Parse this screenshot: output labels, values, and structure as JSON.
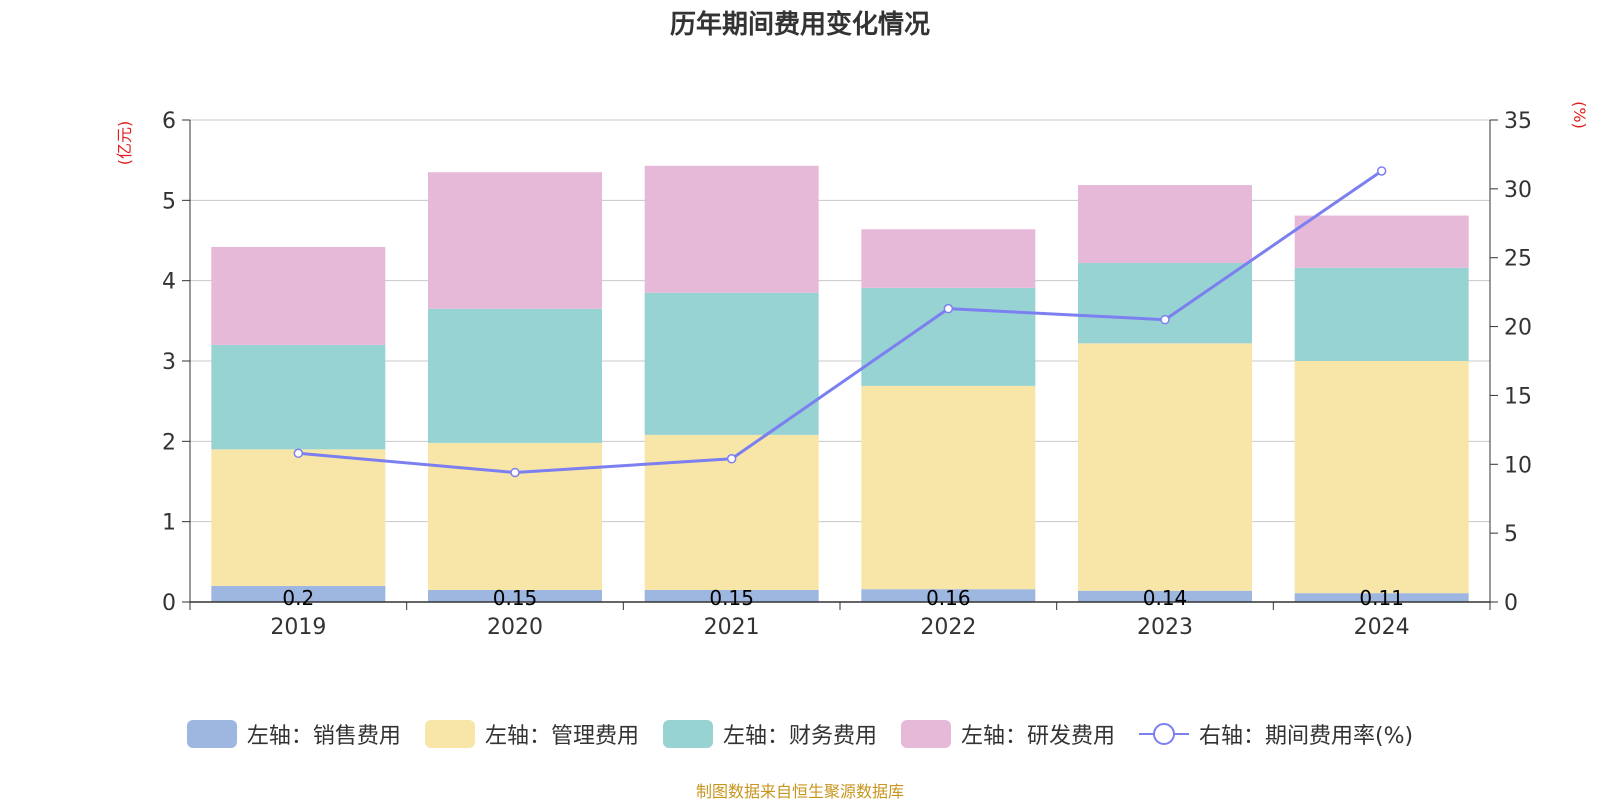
{
  "chart_data": {
    "type": "bar",
    "stacked": true,
    "title": "历年期间费用变化情况",
    "categories": [
      "2019",
      "2020",
      "2021",
      "2022",
      "2023",
      "2024"
    ],
    "left_axis": {
      "label": "(亿元)",
      "ylim": [
        0,
        6
      ],
      "ticks": [
        "0",
        "1",
        "2",
        "3",
        "4",
        "5",
        "6"
      ]
    },
    "right_axis": {
      "label": "(%)",
      "ylim": [
        0,
        35
      ],
      "ticks": [
        "0",
        "5",
        "10",
        "15",
        "20",
        "25",
        "30",
        "35"
      ]
    },
    "series": [
      {
        "name": "左轴：销售费用",
        "type": "bar",
        "axis": "left",
        "color": "#9db7e0",
        "values": [
          0.2,
          0.15,
          0.15,
          0.16,
          0.14,
          0.11
        ],
        "labels": [
          "0.2",
          "0.15",
          "0.15",
          "0.16",
          "0.14",
          "0.11"
        ]
      },
      {
        "name": "左轴：管理费用",
        "type": "bar",
        "axis": "left",
        "color": "#f7e6a8",
        "values": [
          1.7,
          1.83,
          1.93,
          2.53,
          3.08,
          2.89
        ]
      },
      {
        "name": "左轴：财务费用",
        "type": "bar",
        "axis": "left",
        "color": "#98d3d4",
        "values": [
          1.3,
          1.67,
          1.77,
          1.22,
          1.0,
          1.16
        ]
      },
      {
        "name": "左轴：研发费用",
        "type": "bar",
        "axis": "left",
        "color": "#e7b9d9",
        "values": [
          1.22,
          1.7,
          1.58,
          0.73,
          0.97,
          0.65
        ]
      },
      {
        "name": "右轴：期间费用率(%)",
        "type": "line",
        "axis": "right",
        "color": "#7b7fef",
        "values": [
          10.8,
          9.4,
          10.4,
          21.3,
          20.5,
          31.3
        ]
      }
    ],
    "source": "制图数据来自恒生聚源数据库"
  }
}
